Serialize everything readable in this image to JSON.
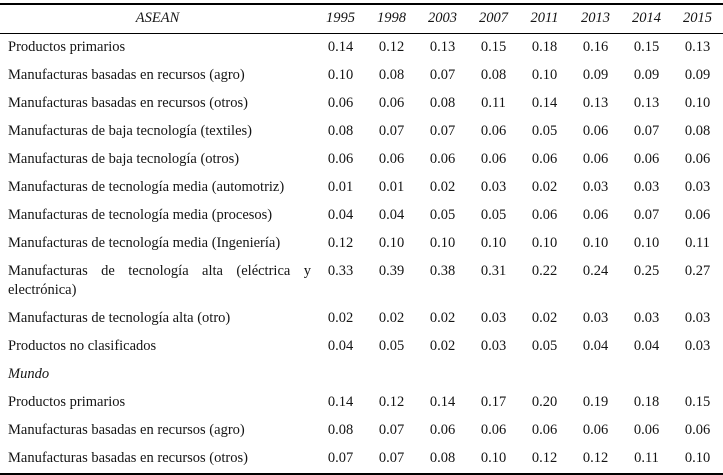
{
  "page": {
    "background": "#ffffff",
    "text_color": "#141414",
    "rule_color": "#000000"
  },
  "table": {
    "header": {
      "group_label": "ASEAN",
      "years": [
        "1995",
        "1998",
        "2003",
        "2007",
        "2011",
        "2013",
        "2014",
        "2015"
      ]
    },
    "sections": [
      {
        "title": "",
        "rows": [
          {
            "label": "Productos primarios",
            "values": [
              "0.14",
              "0.12",
              "0.13",
              "0.15",
              "0.18",
              "0.16",
              "0.15",
              "0.13"
            ]
          },
          {
            "label": "Manufacturas basadas en recursos (agro)",
            "values": [
              "0.10",
              "0.08",
              "0.07",
              "0.08",
              "0.10",
              "0.09",
              "0.09",
              "0.09"
            ]
          },
          {
            "label": "Manufacturas basadas en recursos (otros)",
            "values": [
              "0.06",
              "0.06",
              "0.08",
              "0.11",
              "0.14",
              "0.13",
              "0.13",
              "0.10"
            ]
          },
          {
            "label": "Manufacturas de baja tecnología (textiles)",
            "values": [
              "0.08",
              "0.07",
              "0.07",
              "0.06",
              "0.05",
              "0.06",
              "0.07",
              "0.08"
            ]
          },
          {
            "label": "Manufacturas de baja tecnología (otros)",
            "values": [
              "0.06",
              "0.06",
              "0.06",
              "0.06",
              "0.06",
              "0.06",
              "0.06",
              "0.06"
            ]
          },
          {
            "label": "Manufacturas de tecnología media (automotriz)",
            "values": [
              "0.01",
              "0.01",
              "0.02",
              "0.03",
              "0.02",
              "0.03",
              "0.03",
              "0.03"
            ]
          },
          {
            "label": "Manufacturas de tecnología media (procesos)",
            "values": [
              "0.04",
              "0.04",
              "0.05",
              "0.05",
              "0.06",
              "0.06",
              "0.07",
              "0.06"
            ]
          },
          {
            "label": "Manufacturas de tecnología media (Ingeniería)",
            "values": [
              "0.12",
              "0.10",
              "0.10",
              "0.10",
              "0.10",
              "0.10",
              "0.10",
              "0.11"
            ]
          },
          {
            "label": "Manufacturas de tecnología alta (eléctrica y electrónica)",
            "values": [
              "0.33",
              "0.39",
              "0.38",
              "0.31",
              "0.22",
              "0.24",
              "0.25",
              "0.27"
            ]
          },
          {
            "label": "Manufacturas de tecnología alta (otro)",
            "values": [
              "0.02",
              "0.02",
              "0.02",
              "0.03",
              "0.02",
              "0.03",
              "0.03",
              "0.03"
            ]
          },
          {
            "label": "Productos no clasificados",
            "values": [
              "0.04",
              "0.05",
              "0.02",
              "0.03",
              "0.05",
              "0.04",
              "0.04",
              "0.03"
            ]
          }
        ]
      },
      {
        "title": "Mundo",
        "rows": [
          {
            "label": "Productos primarios",
            "values": [
              "0.14",
              "0.12",
              "0.14",
              "0.17",
              "0.20",
              "0.19",
              "0.18",
              "0.15"
            ]
          },
          {
            "label": "Manufacturas basadas en recursos (agro)",
            "values": [
              "0.08",
              "0.07",
              "0.06",
              "0.06",
              "0.06",
              "0.06",
              "0.06",
              "0.06"
            ]
          },
          {
            "label": "Manufacturas basadas en recursos (otros)",
            "values": [
              "0.07",
              "0.07",
              "0.08",
              "0.10",
              "0.12",
              "0.12",
              "0.11",
              "0.10"
            ]
          }
        ]
      }
    ]
  }
}
